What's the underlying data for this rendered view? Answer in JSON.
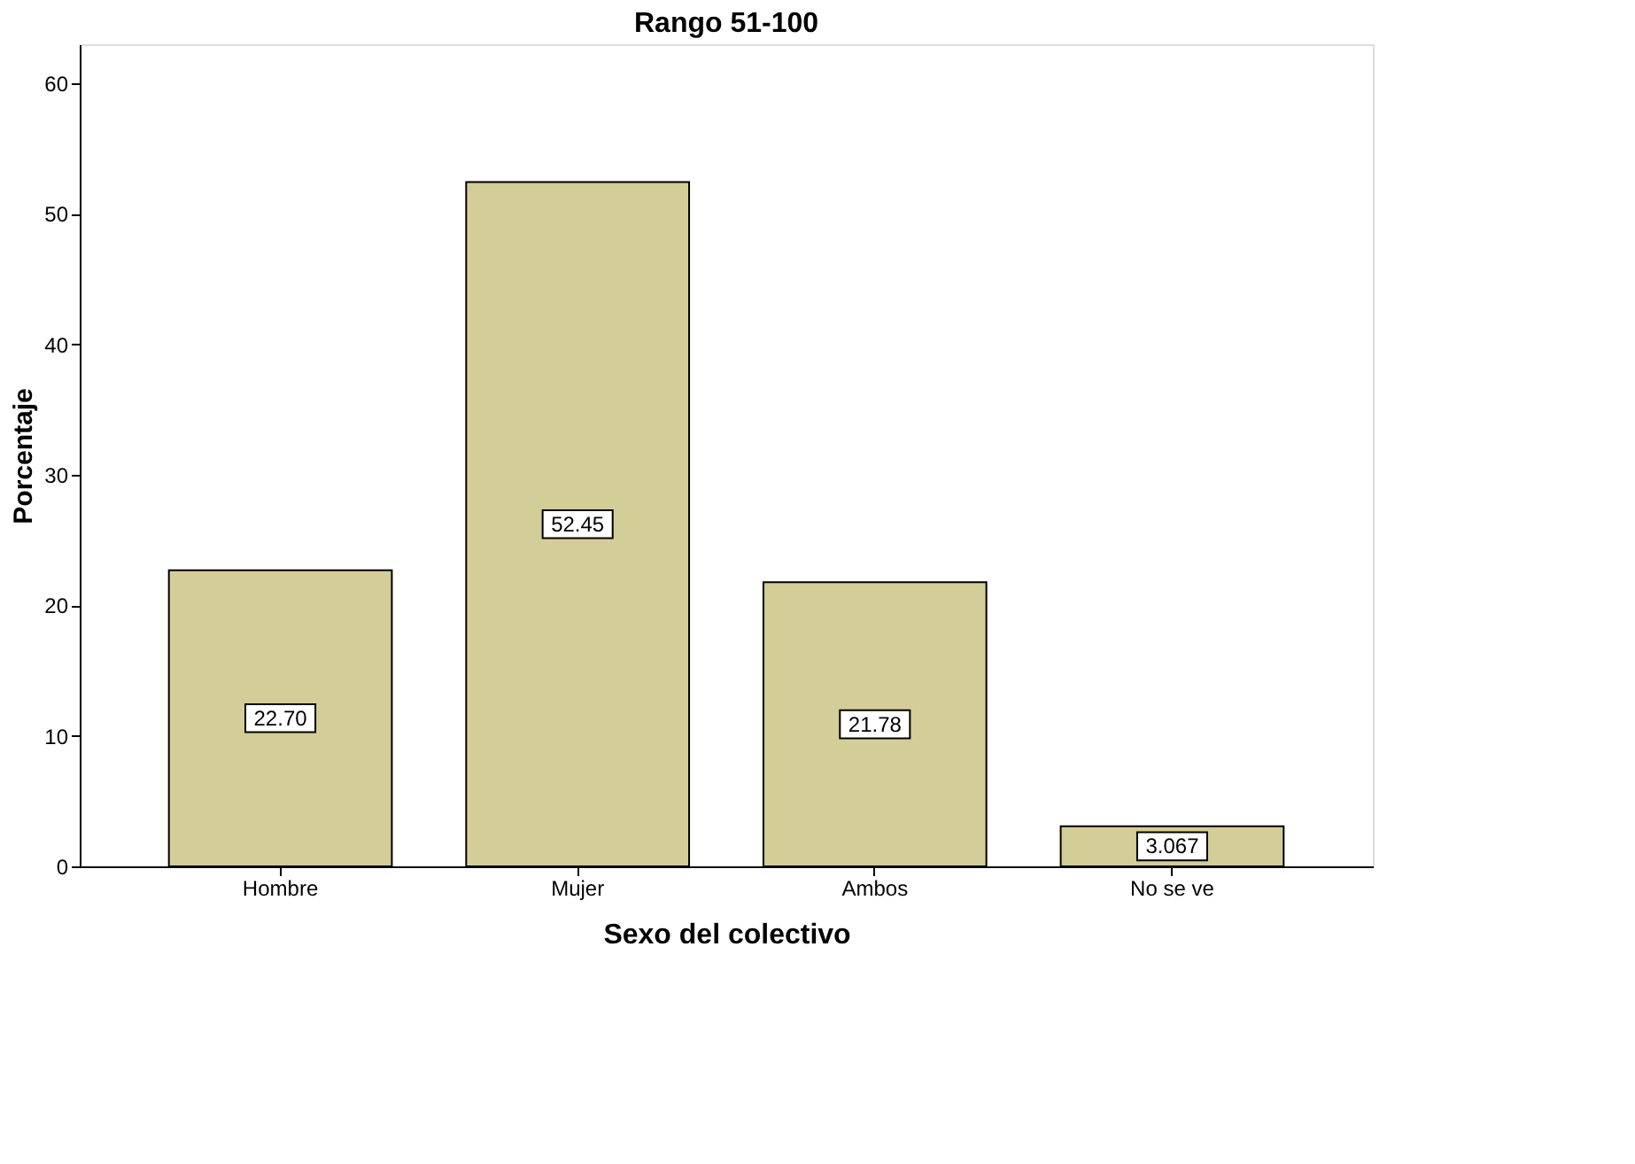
{
  "chart_data": {
    "type": "bar",
    "title": "Rango 51-100",
    "xlabel": "Sexo del colectivo",
    "ylabel": "Porcentaje",
    "categories": [
      "Hombre",
      "Mujer",
      "Ambos",
      "No se ve"
    ],
    "values": [
      22.7,
      52.45,
      21.78,
      3.067
    ],
    "value_labels": [
      "22.70",
      "52.45",
      "21.78",
      "3.067"
    ],
    "color": "#d3ce98",
    "ylim": [
      0,
      63
    ],
    "yticks": [
      0,
      10,
      20,
      30,
      40,
      50,
      60
    ],
    "grid": false
  }
}
